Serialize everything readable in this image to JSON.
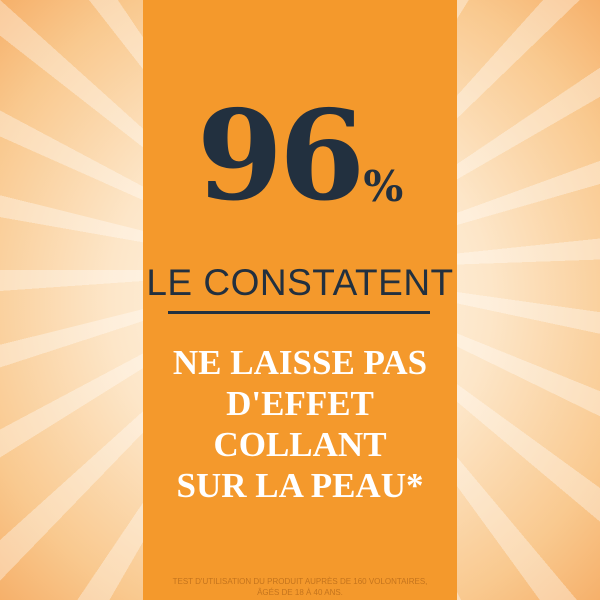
{
  "headline": {
    "number": "96",
    "percent": "%",
    "subtitle": "LE CONSTATENT"
  },
  "claim": [
    "NE LAISSE PAS",
    "D'EFFET COLLANT",
    "SUR LA PEAU*"
  ],
  "footnote": [
    "TEST D'UTILISATION DU PRODUIT AUPRÈS DE 160 VOLONTAIRES,",
    "ÂGÉS DE 18 À 40 ANS."
  ],
  "colors": {
    "panel": "#f4992c",
    "text_dark": "#22303f",
    "claim": "#ffffff"
  }
}
